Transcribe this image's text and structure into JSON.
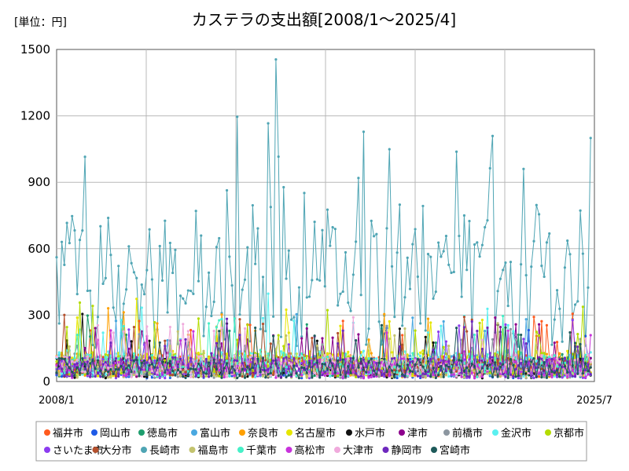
{
  "chart_data": {
    "type": "line",
    "title": "カステラの支出額[2008/1～2025/4]",
    "unit_label": "[単位：円]",
    "ylim": [
      0,
      1500
    ],
    "yticks": [
      "0",
      "300",
      "600",
      "900",
      "1200",
      "1500"
    ],
    "xticks": [
      "2008/1",
      "2010/12",
      "2013/11",
      "2016/10",
      "2019/9",
      "2022/8",
      "2025/7"
    ],
    "grid": true,
    "legend_position": "bottom",
    "series": [
      {
        "name": "福井市",
        "color": "#ff5a1e",
        "data": {
          "base": 70,
          "amp": 50
        }
      },
      {
        "name": "岡山市",
        "color": "#1e5ae6",
        "data": {
          "base": 60,
          "amp": 45
        }
      },
      {
        "name": "徳島市",
        "color": "#1e9e6e",
        "data": {
          "base": 65,
          "amp": 45
        }
      },
      {
        "name": "富山市",
        "color": "#4aa8e0",
        "data": {
          "base": 70,
          "amp": 50
        }
      },
      {
        "name": "奈良市",
        "color": "#ffa000",
        "data": {
          "base": 75,
          "amp": 55
        }
      },
      {
        "name": "名古屋市",
        "color": "#e6e600",
        "data": {
          "base": 80,
          "amp": 60
        }
      },
      {
        "name": "水戸市",
        "color": "#111111",
        "data": {
          "base": 60,
          "amp": 45
        }
      },
      {
        "name": "津市",
        "color": "#8c008c",
        "data": {
          "base": 65,
          "amp": 45
        }
      },
      {
        "name": "前橋市",
        "color": "#8c96a0",
        "data": {
          "base": 55,
          "amp": 40
        }
      },
      {
        "name": "金沢市",
        "color": "#5af0f0",
        "data": {
          "base": 80,
          "amp": 60
        }
      },
      {
        "name": "京都市",
        "color": "#b4dc00",
        "data": {
          "base": 75,
          "amp": 55
        }
      },
      {
        "name": "さいたま市",
        "color": "#8c3cf0",
        "data": {
          "base": 60,
          "amp": 45
        }
      },
      {
        "name": "大分市",
        "color": "#b4502d",
        "data": {
          "base": 65,
          "amp": 45
        }
      },
      {
        "name": "長崎市",
        "color": "#4fa5b4",
        "data": {
          "base": 560,
          "amp": 220
        }
      },
      {
        "name": "福島市",
        "color": "#c3c36e",
        "data": {
          "base": 60,
          "amp": 45
        }
      },
      {
        "name": "千葉市",
        "color": "#46f0c8",
        "data": {
          "base": 75,
          "amp": 55
        }
      },
      {
        "name": "高松市",
        "color": "#c832dc",
        "data": {
          "base": 60,
          "amp": 45
        }
      },
      {
        "name": "大津市",
        "color": "#f0aadc",
        "data": {
          "base": 70,
          "amp": 50
        }
      },
      {
        "name": "静岡市",
        "color": "#6e28be",
        "data": {
          "base": 65,
          "amp": 45
        }
      },
      {
        "name": "宮崎市",
        "color": "#1e5a5a",
        "data": {
          "base": 60,
          "amp": 45
        }
      }
    ]
  }
}
